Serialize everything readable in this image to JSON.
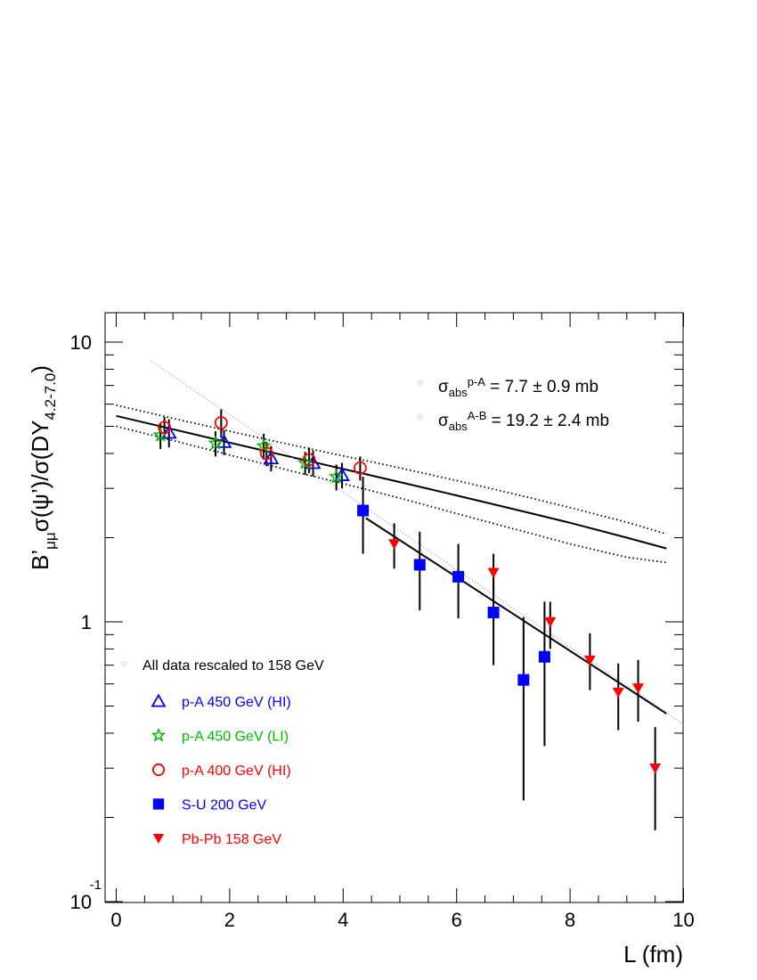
{
  "chart_data": {
    "type": "scatter",
    "yscale": "log",
    "xlim": [
      -0.2,
      10
    ],
    "ylim": [
      0.1,
      13.5
    ],
    "x_ticks": [
      0,
      2,
      4,
      6,
      8,
      10
    ],
    "x_tick_labels": [
      "0",
      "2",
      "4",
      "6",
      "8",
      "10"
    ],
    "xlabel": "L (fm)",
    "ylabel": {
      "main": "B’",
      "sub1": "μμ",
      "mid": "σ(ψ’)/σ(DY",
      "sub2": "4.2-7.0",
      "end": ")"
    },
    "y_tick_labels": [
      {
        "value": 10,
        "label": "10",
        "sup": ""
      },
      {
        "value": 1,
        "label": "1",
        "sup": ""
      },
      {
        "value": 0.1,
        "label": "10",
        "sup": "-1"
      }
    ],
    "annotations": [
      {
        "sym": "σ",
        "sub": "abs",
        "sup": "p-A",
        "rest": " = 7.7 ± 0.9 mb"
      },
      {
        "sym": "σ",
        "sub": "abs",
        "sup": "A-B",
        "rest": " = 19.2 ± 2.4 mb"
      }
    ],
    "legend_title": "All data rescaled to 158 GeV",
    "legend_position": "bottom-left",
    "series": [
      {
        "name": "p-A 450 GeV (HI)",
        "marker": "triangle-open",
        "color": "#0000ff",
        "points": [
          {
            "x": 0.93,
            "y": 4.75,
            "err": 0.55
          },
          {
            "x": 1.9,
            "y": 4.4,
            "err": 0.45
          },
          {
            "x": 2.73,
            "y": 3.85,
            "err": 0.4
          },
          {
            "x": 3.47,
            "y": 3.7,
            "err": 0.4
          },
          {
            "x": 3.98,
            "y": 3.35,
            "err": 0.35
          }
        ]
      },
      {
        "name": "p-A 450 GeV (LI)",
        "marker": "star-open",
        "color": "#00bb00",
        "points": [
          {
            "x": 0.78,
            "y": 4.65,
            "err": 0.5
          },
          {
            "x": 1.75,
            "y": 4.35,
            "err": 0.45
          },
          {
            "x": 2.6,
            "y": 4.25,
            "err": 0.45
          },
          {
            "x": 3.33,
            "y": 3.7,
            "err": 0.35
          },
          {
            "x": 3.88,
            "y": 3.3,
            "err": 0.35
          }
        ]
      },
      {
        "name": "p-A 400 GeV (HI)",
        "marker": "circle-open",
        "color": "#ff0000",
        "points": [
          {
            "x": 0.85,
            "y": 4.95,
            "err": 0.45
          },
          {
            "x": 1.85,
            "y": 5.15,
            "err": 0.6
          },
          {
            "x": 2.65,
            "y": 4.0,
            "err": 0.4
          },
          {
            "x": 3.4,
            "y": 3.8,
            "err": 0.4
          },
          {
            "x": 4.3,
            "y": 3.55,
            "err": 0.35
          }
        ]
      },
      {
        "name": "S-U 200 GeV",
        "marker": "square-filled",
        "color": "#0000ff",
        "points": [
          {
            "x": 4.35,
            "y": 2.5,
            "err_up": 0.8,
            "err_dn": 0.75
          },
          {
            "x": 5.35,
            "y": 1.6,
            "err_up": 0.5,
            "err_dn": 0.5
          },
          {
            "x": 6.03,
            "y": 1.45,
            "err_up": 0.45,
            "err_dn": 0.42
          },
          {
            "x": 6.65,
            "y": 1.08,
            "err_up": 0.42,
            "err_dn": 0.38
          },
          {
            "x": 7.18,
            "y": 0.62,
            "err_up": 0.42,
            "err_dn": 0.39
          },
          {
            "x": 7.55,
            "y": 0.75,
            "err_up": 0.43,
            "err_dn": 0.39
          }
        ]
      },
      {
        "name": "Pb-Pb 158 GeV",
        "marker": "triangle-down-filled",
        "color": "#ff0000",
        "points": [
          {
            "x": 4.9,
            "y": 1.9,
            "err_up": 0.35,
            "err_dn": 0.35
          },
          {
            "x": 6.65,
            "y": 1.5,
            "err_up": 0.25,
            "err_dn": 0.25
          },
          {
            "x": 7.65,
            "y": 1.0,
            "err_up": 0.18,
            "err_dn": 0.2
          },
          {
            "x": 8.35,
            "y": 0.73,
            "err_up": 0.18,
            "err_dn": 0.16
          },
          {
            "x": 8.85,
            "y": 0.56,
            "err_up": 0.15,
            "err_dn": 0.15
          },
          {
            "x": 9.2,
            "y": 0.58,
            "err_up": 0.15,
            "err_dn": 0.14
          },
          {
            "x": 9.5,
            "y": 0.3,
            "err_up": 0.12,
            "err_dn": 0.12
          }
        ]
      }
    ],
    "curves": [
      {
        "style": "solid",
        "points": [
          [
            0,
            5.45
          ],
          [
            1,
            4.88
          ],
          [
            2,
            4.37
          ],
          [
            3,
            3.92
          ],
          [
            4,
            3.52
          ],
          [
            5,
            3.16
          ],
          [
            6,
            2.83
          ],
          [
            7,
            2.53
          ],
          [
            8,
            2.26
          ],
          [
            9,
            2.0
          ],
          [
            9.7,
            1.83
          ]
        ]
      },
      {
        "style": "dotted",
        "points": [
          [
            0,
            5.95
          ],
          [
            1,
            5.34
          ],
          [
            2,
            4.8
          ],
          [
            3,
            4.33
          ],
          [
            4,
            3.92
          ],
          [
            5,
            3.55
          ],
          [
            6,
            3.2
          ],
          [
            7,
            2.87
          ],
          [
            8,
            2.56
          ],
          [
            9,
            2.27
          ],
          [
            9.7,
            2.06
          ]
        ]
      },
      {
        "style": "dotted",
        "points": [
          [
            0,
            5.0
          ],
          [
            1,
            4.45
          ],
          [
            2,
            3.95
          ],
          [
            3,
            3.5
          ],
          [
            4,
            3.12
          ],
          [
            5,
            2.77
          ],
          [
            6,
            2.44
          ],
          [
            7,
            2.15
          ],
          [
            8,
            1.9
          ],
          [
            9,
            1.7
          ],
          [
            9.7,
            1.63
          ]
        ]
      },
      {
        "style": "solid",
        "points": [
          [
            4.4,
            2.35
          ],
          [
            9.7,
            0.47
          ]
        ]
      },
      {
        "style": "dotted-light",
        "points": [
          [
            0.6,
            8.6
          ],
          [
            10,
            0.43
          ]
        ]
      }
    ]
  }
}
